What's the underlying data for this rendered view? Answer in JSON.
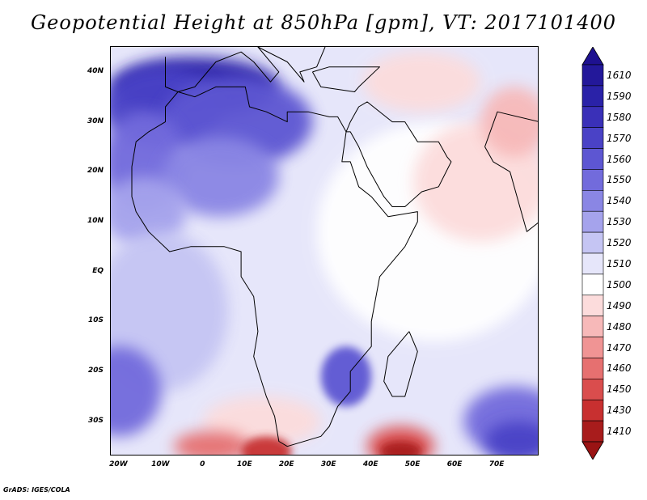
{
  "title": "Geopotential Height at 850hPa [gpm], VT: 2017101400",
  "credit": "GrADS: IGES/COLA",
  "map": {
    "projection": "lat-lon",
    "lon_range": [
      -22,
      80
    ],
    "lat_range": [
      -37,
      45
    ],
    "variable": "Geopotential Height at 850hPa",
    "units": "gpm",
    "valid_time": "2017101400"
  },
  "axes": {
    "lat_labels": [
      {
        "label": "40N",
        "lat": 40
      },
      {
        "label": "30N",
        "lat": 30
      },
      {
        "label": "20N",
        "lat": 20
      },
      {
        "label": "10N",
        "lat": 10
      },
      {
        "label": "EQ",
        "lat": 0
      },
      {
        "label": "10S",
        "lat": -10
      },
      {
        "label": "20S",
        "lat": -20
      },
      {
        "label": "30S",
        "lat": -30
      }
    ],
    "lon_labels": [
      {
        "label": "20W",
        "lon": -20
      },
      {
        "label": "10W",
        "lon": -10
      },
      {
        "label": "0",
        "lon": 0
      },
      {
        "label": "10E",
        "lon": 10
      },
      {
        "label": "20E",
        "lon": 20
      },
      {
        "label": "30E",
        "lon": 30
      },
      {
        "label": "40E",
        "lon": 40
      },
      {
        "label": "50E",
        "lon": 50
      },
      {
        "label": "60E",
        "lon": 60
      },
      {
        "label": "70E",
        "lon": 70
      }
    ]
  },
  "colorbar": {
    "levels": [
      "1610",
      "1590",
      "1580",
      "1570",
      "1560",
      "1550",
      "1540",
      "1530",
      "1520",
      "1510",
      "1500",
      "1490",
      "1480",
      "1470",
      "1460",
      "1450",
      "1430",
      "1410"
    ],
    "colors": [
      "#23189a",
      "#2a22a8",
      "#3a30b8",
      "#4a42c6",
      "#5d56d2",
      "#726bdc",
      "#8a86e4",
      "#a5a3ec",
      "#c5c5f3",
      "#e6e6fa",
      "#ffffff",
      "#fcdcdc",
      "#f7b9b9",
      "#f09494",
      "#e67070",
      "#da4d4d",
      "#c83030",
      "#a81c1c"
    ],
    "upper_arrow_color": "#1e1190",
    "lower_arrow_color": "#9a1414"
  },
  "blobs": [
    {
      "label": "1590",
      "lon": -2,
      "lat": 37,
      "rx": 20,
      "ry": 6
    },
    {
      "label": "1570",
      "lon": -10,
      "lat": 33,
      "rx": 14,
      "ry": 8
    },
    {
      "label": "1560",
      "lon": 8,
      "lat": 30,
      "rx": 18,
      "ry": 9
    },
    {
      "label": "1550",
      "lon": -14,
      "lat": 22,
      "rx": 10,
      "ry": 10
    },
    {
      "label": "1540",
      "lon": 4,
      "lat": 19,
      "rx": 14,
      "ry": 8
    },
    {
      "label": "1530",
      "lon": -14,
      "lat": 12,
      "rx": 10,
      "ry": 7
    },
    {
      "label": "1520",
      "lon": -10,
      "lat": -8,
      "rx": 16,
      "ry": 16
    },
    {
      "label": "1550",
      "lon": -20,
      "lat": -24,
      "rx": 10,
      "ry": 9
    },
    {
      "label": "1560",
      "lon": 34,
      "lat": -21,
      "rx": 6,
      "ry": 6
    },
    {
      "label": "1550",
      "lon": 74,
      "lat": -30,
      "rx": 12,
      "ry": 7
    },
    {
      "label": "1570",
      "lon": 75,
      "lat": -34,
      "rx": 8,
      "ry": 4
    },
    {
      "label": "1500",
      "lon": 55,
      "lat": 8,
      "rx": 28,
      "ry": 22
    },
    {
      "label": "1490",
      "lon": 66,
      "lat": 18,
      "rx": 16,
      "ry": 12
    },
    {
      "label": "1480",
      "lon": 74,
      "lat": 30,
      "rx": 8,
      "ry": 7
    },
    {
      "label": "1490",
      "lon": 52,
      "lat": 38,
      "rx": 14,
      "ry": 6
    },
    {
      "label": "1490",
      "lon": 14,
      "lat": -30,
      "rx": 14,
      "ry": 5
    },
    {
      "label": "1460",
      "lon": 2,
      "lat": -35,
      "rx": 9,
      "ry": 3
    },
    {
      "label": "1430",
      "lon": 15,
      "lat": -36,
      "rx": 6,
      "ry": 3
    },
    {
      "label": "1450",
      "lon": 47,
      "lat": -35,
      "rx": 8,
      "ry": 4
    },
    {
      "label": "1410",
      "lon": 47,
      "lat": -36,
      "rx": 5,
      "ry": 2
    }
  ],
  "coastlines": {
    "africa": [
      [
        -17,
        21
      ],
      [
        -16,
        26
      ],
      [
        -13,
        28
      ],
      [
        -9,
        30
      ],
      [
        -9,
        33
      ],
      [
        -6,
        36
      ],
      [
        -2,
        35
      ],
      [
        3,
        37
      ],
      [
        10,
        37
      ],
      [
        11,
        33
      ],
      [
        15,
        32
      ],
      [
        20,
        30
      ],
      [
        20,
        32
      ],
      [
        25,
        32
      ],
      [
        30,
        31
      ],
      [
        32,
        31
      ],
      [
        34,
        28
      ],
      [
        33,
        22
      ],
      [
        35,
        22
      ],
      [
        37,
        17
      ],
      [
        40,
        15
      ],
      [
        43,
        12
      ],
      [
        44,
        11
      ],
      [
        51,
        12
      ],
      [
        51,
        10
      ],
      [
        48,
        5
      ],
      [
        42,
        -1
      ],
      [
        40,
        -10
      ],
      [
        40,
        -15
      ],
      [
        35,
        -20
      ],
      [
        35,
        -24
      ],
      [
        32,
        -27
      ],
      [
        30,
        -31
      ],
      [
        28,
        -33
      ],
      [
        20,
        -35
      ],
      [
        18,
        -34
      ],
      [
        17,
        -29
      ],
      [
        15,
        -25
      ],
      [
        12,
        -17
      ],
      [
        13,
        -12
      ],
      [
        12,
        -5
      ],
      [
        9,
        -1
      ],
      [
        9,
        4
      ],
      [
        5,
        5
      ],
      [
        -3,
        5
      ],
      [
        -8,
        4
      ],
      [
        -13,
        8
      ],
      [
        -16,
        12
      ],
      [
        -17,
        15
      ],
      [
        -17,
        21
      ]
    ],
    "arabia": [
      [
        34,
        28
      ],
      [
        35,
        30
      ],
      [
        37,
        33
      ],
      [
        39,
        34
      ],
      [
        45,
        30
      ],
      [
        48,
        30
      ],
      [
        51,
        26
      ],
      [
        56,
        26
      ],
      [
        58,
        23
      ],
      [
        59,
        22
      ],
      [
        56,
        17
      ],
      [
        52,
        16
      ],
      [
        48,
        13
      ],
      [
        45,
        13
      ],
      [
        43,
        15
      ],
      [
        39,
        21
      ],
      [
        37,
        25
      ],
      [
        35,
        28
      ],
      [
        34,
        28
      ]
    ],
    "madagascar": [
      [
        49,
        -12
      ],
      [
        51,
        -16
      ],
      [
        48,
        -25
      ],
      [
        45,
        -25
      ],
      [
        43,
        -22
      ],
      [
        44,
        -17
      ],
      [
        49,
        -12
      ]
    ],
    "india": [
      [
        67,
        25
      ],
      [
        69,
        22
      ],
      [
        73,
        20
      ],
      [
        77,
        8
      ],
      [
        80,
        10
      ],
      [
        80,
        16
      ],
      [
        80,
        30
      ],
      [
        70,
        32
      ],
      [
        67,
        25
      ]
    ],
    "europe_coast": [
      [
        -9,
        43
      ],
      [
        -9,
        37
      ],
      [
        -6,
        36
      ],
      [
        -2,
        37
      ],
      [
        0,
        39
      ],
      [
        3,
        42
      ],
      [
        9,
        44
      ],
      [
        12,
        42
      ],
      [
        16,
        38
      ],
      [
        18,
        40
      ],
      [
        13,
        45
      ],
      [
        20,
        42
      ],
      [
        24,
        38
      ],
      [
        23,
        40
      ],
      [
        27,
        41
      ],
      [
        29,
        45
      ]
    ],
    "turkey": [
      [
        26,
        40
      ],
      [
        28,
        37
      ],
      [
        36,
        36
      ],
      [
        37,
        37
      ],
      [
        42,
        41
      ],
      [
        40,
        41
      ],
      [
        30,
        41
      ],
      [
        26,
        40
      ]
    ]
  }
}
